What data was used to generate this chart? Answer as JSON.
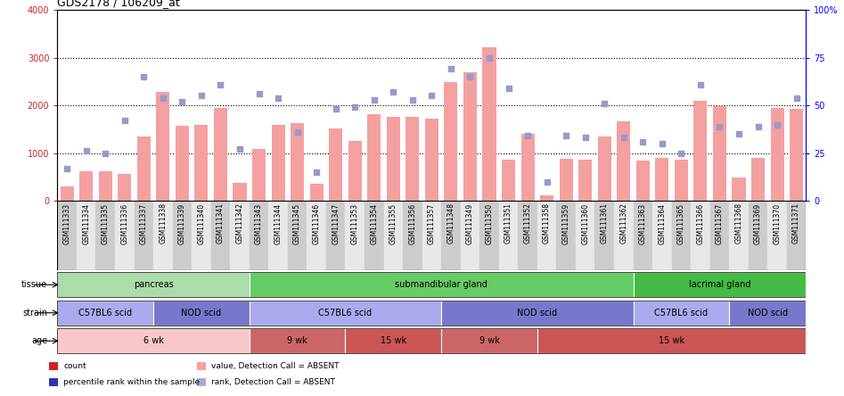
{
  "title": "GDS2178 / 106209_at",
  "samples": [
    "GSM111333",
    "GSM111334",
    "GSM111335",
    "GSM111336",
    "GSM111337",
    "GSM111338",
    "GSM111339",
    "GSM111340",
    "GSM111341",
    "GSM111342",
    "GSM111343",
    "GSM111344",
    "GSM111345",
    "GSM111346",
    "GSM111347",
    "GSM111353",
    "GSM111354",
    "GSM111355",
    "GSM111356",
    "GSM111357",
    "GSM111348",
    "GSM111349",
    "GSM111350",
    "GSM111351",
    "GSM111352",
    "GSM111358",
    "GSM111359",
    "GSM111360",
    "GSM111361",
    "GSM111362",
    "GSM111363",
    "GSM111364",
    "GSM111365",
    "GSM111366",
    "GSM111367",
    "GSM111368",
    "GSM111369",
    "GSM111370",
    "GSM111371"
  ],
  "bar_values": [
    310,
    620,
    620,
    560,
    1350,
    2280,
    1580,
    1590,
    1950,
    380,
    1090,
    1590,
    1630,
    360,
    1510,
    1250,
    1820,
    1760,
    1760,
    1730,
    2490,
    2700,
    3210,
    860,
    1400,
    120,
    880,
    860,
    1350,
    1660,
    840,
    900,
    860,
    2100,
    1990,
    490,
    890,
    1940,
    1920
  ],
  "scatter_pct": [
    17,
    26,
    25,
    42,
    65,
    54,
    52,
    55,
    61,
    27,
    56,
    54,
    36,
    15,
    48,
    49,
    53,
    57,
    53,
    55,
    69,
    65,
    75,
    59,
    34,
    10,
    34,
    33,
    51,
    33,
    31,
    30,
    25,
    61,
    39,
    35,
    39,
    40,
    54
  ],
  "bar_color": "#f4a0a0",
  "scatter_color": "#9999cc",
  "tissue_groups": [
    {
      "label": "pancreas",
      "start": 0,
      "end": 9,
      "color": "#aaddaa"
    },
    {
      "label": "submandibular gland",
      "start": 10,
      "end": 29,
      "color": "#66cc66"
    },
    {
      "label": "lacrimal gland",
      "start": 30,
      "end": 38,
      "color": "#44bb44"
    }
  ],
  "strain_groups": [
    {
      "label": "C57BL6 scid",
      "start": 0,
      "end": 4,
      "color": "#aaaaee"
    },
    {
      "label": "NOD scid",
      "start": 5,
      "end": 9,
      "color": "#7777cc"
    },
    {
      "label": "C57BL6 scid",
      "start": 10,
      "end": 19,
      "color": "#aaaaee"
    },
    {
      "label": "NOD scid",
      "start": 20,
      "end": 29,
      "color": "#7777cc"
    },
    {
      "label": "C57BL6 scid",
      "start": 30,
      "end": 34,
      "color": "#aaaaee"
    },
    {
      "label": "NOD scid",
      "start": 35,
      "end": 38,
      "color": "#7777cc"
    }
  ],
  "age_groups": [
    {
      "label": "6 wk",
      "start": 0,
      "end": 9,
      "color": "#f8c8c8"
    },
    {
      "label": "9 wk",
      "start": 10,
      "end": 14,
      "color": "#cc6666"
    },
    {
      "label": "15 wk",
      "start": 15,
      "end": 19,
      "color": "#cc5555"
    },
    {
      "label": "9 wk",
      "start": 20,
      "end": 24,
      "color": "#cc6666"
    },
    {
      "label": "15 wk",
      "start": 25,
      "end": 38,
      "color": "#cc5555"
    }
  ],
  "row_labels": [
    "tissue",
    "strain",
    "age"
  ],
  "legend_items": [
    {
      "label": "count",
      "color": "#cc2222"
    },
    {
      "label": "percentile rank within the sample",
      "color": "#3333aa"
    },
    {
      "label": "value, Detection Call = ABSENT",
      "color": "#f4a0a0"
    },
    {
      "label": "rank, Detection Call = ABSENT",
      "color": "#aaaadd"
    }
  ]
}
